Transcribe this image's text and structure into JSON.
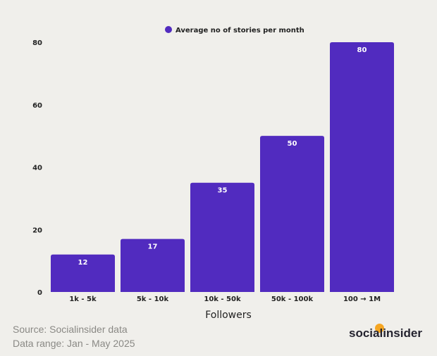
{
  "chart_data": {
    "type": "bar",
    "categories": [
      "1k - 5k",
      "5k - 10k",
      "10k - 50k",
      "50k - 100k",
      "100 → 1M"
    ],
    "series": [
      {
        "name": "Average no of stories per month",
        "values": [
          12,
          17,
          35,
          50,
          80
        ]
      }
    ],
    "xlabel": "Followers",
    "ylabel": "",
    "ylim": [
      0,
      80
    ],
    "yticks": [
      0,
      20,
      40,
      60,
      80
    ],
    "grid": false,
    "legend": "top-center",
    "colors": {
      "bar": "#512bbf",
      "background": "#f0efeb"
    }
  },
  "footer": {
    "source": "Source: Socialinsider data",
    "range": "Data range: Jan - May 2025",
    "logo": "socialinsider"
  }
}
